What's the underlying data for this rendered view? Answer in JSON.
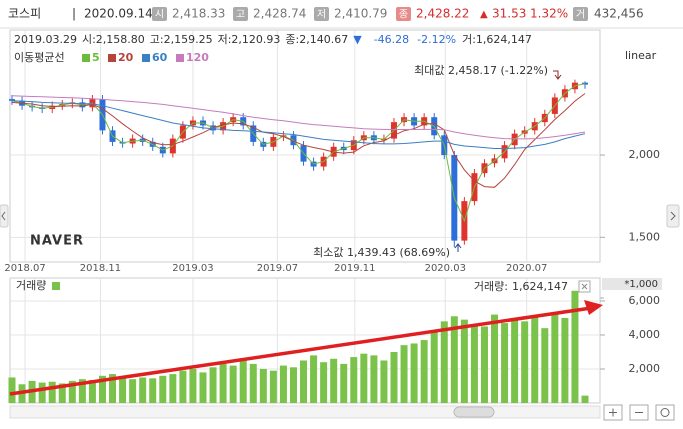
{
  "header": {
    "name": "코스피",
    "date": "2020.09.14",
    "items": [
      {
        "badge": "시",
        "value": "2,418.33"
      },
      {
        "badge": "고",
        "value": "2,428.74"
      },
      {
        "badge": "저",
        "value": "2,410.79"
      },
      {
        "badge": "종",
        "value": "2,428.22"
      }
    ],
    "change_sign": "▲",
    "change": "31.53",
    "change_pct": "1.32%",
    "volume": {
      "badge": "거",
      "value": "432,456"
    }
  },
  "info": [
    "2019.03.29",
    "시:2,158.80",
    "고:2,159.25",
    "저:2,120.93",
    "종:2,140.67",
    "▼",
    "-46.28",
    "-2.12%",
    "거:1,624,147"
  ],
  "chart_data": [
    {
      "type": "candlestick",
      "legend_title": "이동평균선",
      "scale": "linear",
      "watermark": "NAVER",
      "up_color": "#e0332d",
      "down_color": "#2d6ed8",
      "open": [
        2340,
        2330,
        2300,
        2290,
        2280,
        2300,
        2310,
        2320,
        2290,
        2340,
        2150,
        2080,
        2070,
        2100,
        2080,
        2050,
        2010,
        2100,
        2180,
        2210,
        2180,
        2150,
        2200,
        2230,
        2180,
        2080,
        2050,
        2110,
        2120,
        2060,
        1960,
        1930,
        1990,
        2050,
        2030,
        2090,
        2120,
        2090,
        2100,
        2200,
        2230,
        2180,
        2230,
        2120,
        2000,
        1480,
        1720,
        1890,
        1950,
        1980,
        2060,
        2130,
        2150,
        2200,
        2250,
        2350,
        2400,
        2440
      ],
      "high": [
        2365,
        2355,
        2325,
        2315,
        2325,
        2335,
        2345,
        2345,
        2365,
        2365,
        2175,
        2105,
        2125,
        2125,
        2105,
        2075,
        2125,
        2205,
        2235,
        2235,
        2205,
        2225,
        2255,
        2255,
        2205,
        2105,
        2135,
        2145,
        2145,
        2085,
        1985,
        2015,
        2075,
        2075,
        2115,
        2145,
        2145,
        2125,
        2225,
        2255,
        2255,
        2255,
        2255,
        2145,
        2025,
        1745,
        1915,
        1975,
        2005,
        2085,
        2155,
        2175,
        2225,
        2275,
        2375,
        2425,
        2458.17,
        2448
      ],
      "low": [
        2305,
        2275,
        2265,
        2255,
        2255,
        2275,
        2285,
        2265,
        2265,
        2125,
        2055,
        2045,
        2045,
        2055,
        2025,
        1985,
        1985,
        2075,
        2155,
        2155,
        2125,
        2125,
        2175,
        2155,
        2055,
        2025,
        2025,
        2085,
        2035,
        1935,
        1905,
        1905,
        1965,
        2005,
        2005,
        2065,
        2065,
        2065,
        2075,
        2175,
        2155,
        2155,
        2095,
        1975,
        1439.43,
        1455,
        1695,
        1865,
        1925,
        1955,
        2035,
        2105,
        2125,
        2175,
        2225,
        2325,
        2375,
        2403
      ],
      "close": [
        2330,
        2300,
        2290,
        2280,
        2300,
        2310,
        2320,
        2290,
        2340,
        2150,
        2080,
        2070,
        2100,
        2080,
        2050,
        2010,
        2100,
        2180,
        2210,
        2180,
        2150,
        2200,
        2230,
        2180,
        2080,
        2050,
        2110,
        2120,
        2060,
        1960,
        1930,
        1990,
        2050,
        2030,
        2090,
        2120,
        2090,
        2100,
        2200,
        2230,
        2180,
        2230,
        2120,
        2000,
        1480,
        1720,
        1890,
        1950,
        1980,
        2060,
        2130,
        2150,
        2200,
        2250,
        2350,
        2400,
        2440,
        2428.22
      ],
      "series": [
        {
          "name": "5",
          "color": "#6dbb3c",
          "values": [
            2330,
            2315,
            2295,
            2285,
            2290,
            2305,
            2315,
            2305,
            2315,
            2245,
            2115,
            2075,
            2085,
            2090,
            2065,
            2030,
            2055,
            2140,
            2195,
            2195,
            2165,
            2175,
            2215,
            2205,
            2130,
            2065,
            2080,
            2115,
            2090,
            2010,
            1945,
            1960,
            2020,
            2040,
            2060,
            2105,
            2105,
            2095,
            2150,
            2215,
            2205,
            2205,
            2175,
            2060,
            1740,
            1600,
            1805,
            1920,
            1965,
            2020,
            2095,
            2140,
            2175,
            2225,
            2300,
            2375,
            2420,
            2434
          ]
        },
        {
          "name": "20",
          "color": "#b5443c",
          "values": [
            2320,
            2315,
            2310,
            2300,
            2295,
            2296,
            2300,
            2298,
            2308,
            2282,
            2238,
            2190,
            2146,
            2104,
            2076,
            2062,
            2064,
            2084,
            2110,
            2136,
            2166,
            2184,
            2194,
            2190,
            2168,
            2138,
            2130,
            2112,
            2084,
            2060,
            2046,
            2034,
            2018,
            2012,
            2018,
            2056,
            2076,
            2086,
            2120,
            2148,
            2160,
            2188,
            2192,
            2152,
            2002,
            1910,
            1842,
            1808,
            1804,
            1860,
            1942,
            2034,
            2094,
            2154,
            2216,
            2270,
            2328,
            2374
          ]
        },
        {
          "name": "60",
          "color": "#3b7fc4",
          "values": [
            2330,
            2328,
            2325,
            2320,
            2318,
            2316,
            2314,
            2312,
            2312,
            2300,
            2285,
            2270,
            2255,
            2240,
            2225,
            2210,
            2195,
            2185,
            2175,
            2165,
            2160,
            2155,
            2150,
            2148,
            2145,
            2140,
            2135,
            2130,
            2125,
            2115,
            2105,
            2095,
            2090,
            2085,
            2080,
            2075,
            2070,
            2068,
            2068,
            2070,
            2075,
            2080,
            2085,
            2085,
            2065,
            2055,
            2050,
            2045,
            2040,
            2040,
            2042,
            2045,
            2055,
            2065,
            2080,
            2100,
            2115,
            2130
          ]
        },
        {
          "name": "120",
          "color": "#c77bbd",
          "values": [
            2360,
            2358,
            2356,
            2354,
            2352,
            2350,
            2348,
            2345,
            2342,
            2338,
            2334,
            2330,
            2325,
            2320,
            2314,
            2308,
            2300,
            2292,
            2284,
            2276,
            2268,
            2260,
            2250,
            2240,
            2230,
            2222,
            2215,
            2208,
            2200,
            2192,
            2185,
            2180,
            2175,
            2170,
            2165,
            2160,
            2158,
            2156,
            2155,
            2155,
            2155,
            2156,
            2156,
            2154,
            2140,
            2130,
            2120,
            2112,
            2105,
            2100,
            2098,
            2098,
            2100,
            2105,
            2112,
            2120,
            2130,
            2140
          ]
        }
      ],
      "ylim": [
        1350,
        2760
      ],
      "yticks": [
        {
          "value": 1500,
          "label": "1,500"
        },
        {
          "value": 2000,
          "label": "2,000"
        }
      ],
      "xticks": [
        {
          "value": 1.3,
          "label": "2018.07"
        },
        {
          "value": 8.8,
          "label": "2018.11"
        },
        {
          "value": 18,
          "label": "2019.03"
        },
        {
          "value": 26.4,
          "label": "2019.07"
        },
        {
          "value": 34.1,
          "label": "2019.11"
        },
        {
          "value": 43.1,
          "label": "2020.03"
        },
        {
          "value": 51.2,
          "label": "2020.07"
        }
      ],
      "annotations": [
        {
          "text": "최대값 2,458.17 (-1.22%)"
        },
        {
          "text": "최소값 1,439.43 (68.69%)"
        }
      ]
    },
    {
      "type": "bar",
      "title": "거래량",
      "unit_label": "*1,000",
      "current_label": "거래량:",
      "current_value": "1,624,147",
      "color": "#7bc24a",
      "values": [
        1500,
        1100,
        1300,
        1200,
        1250,
        1150,
        1300,
        1400,
        1350,
        1600,
        1700,
        1500,
        1400,
        1500,
        1450,
        1600,
        1700,
        1900,
        2000,
        1800,
        2100,
        2300,
        2200,
        2500,
        2300,
        2000,
        1900,
        2200,
        2100,
        2500,
        2800,
        2400,
        2600,
        2300,
        2700,
        2900,
        2800,
        2500,
        3000,
        3400,
        3500,
        3700,
        4200,
        4800,
        5100,
        4900,
        4600,
        4500,
        5200,
        4700,
        5000,
        4800,
        5100,
        4400,
        5300,
        5000,
        6600,
        432.456
      ],
      "ylim": [
        0,
        7350
      ],
      "yticks": [
        {
          "value": 2000,
          "label": "2,000"
        },
        {
          "value": 4000,
          "label": "4,000"
        },
        {
          "value": 6000,
          "label": "6,000"
        }
      ]
    }
  ]
}
